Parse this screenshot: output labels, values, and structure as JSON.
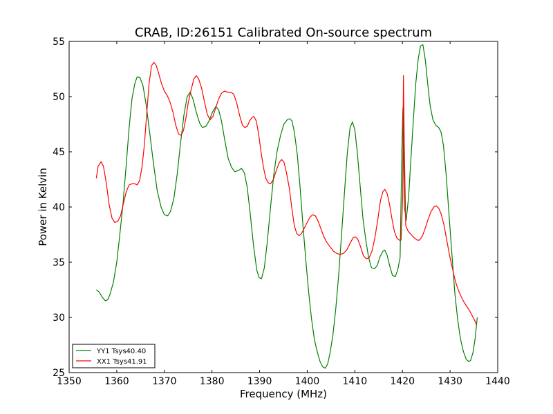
{
  "chart_data": {
    "type": "line",
    "title": "CRAB, ID:26151 Calibrated On-source spectrum",
    "xlabel": "Frequency (MHz)",
    "ylabel": "Power in Kelvin",
    "xlim": [
      1350,
      1440
    ],
    "ylim": [
      25,
      55
    ],
    "xticks": [
      "1350",
      "1360",
      "1370",
      "1380",
      "1390",
      "1400",
      "1410",
      "1420",
      "1430",
      "1440"
    ],
    "yticks": [
      "25",
      "30",
      "35",
      "40",
      "45",
      "50",
      "55"
    ],
    "grid": false,
    "legend_position": "lower-left",
    "series": [
      {
        "name": "YY1 Tsys40.40",
        "color": "#008000",
        "points": [
          [
            1355.7,
            32.5
          ],
          [
            1356.3,
            32.3
          ],
          [
            1357.0,
            31.8
          ],
          [
            1357.6,
            31.5
          ],
          [
            1358.1,
            31.6
          ],
          [
            1358.6,
            32.1
          ],
          [
            1359.3,
            33.2
          ],
          [
            1360.0,
            35.0
          ],
          [
            1360.6,
            37.3
          ],
          [
            1361.3,
            40.2
          ],
          [
            1362.0,
            43.9
          ],
          [
            1362.6,
            47.2
          ],
          [
            1363.2,
            49.8
          ],
          [
            1363.8,
            51.2
          ],
          [
            1364.3,
            51.8
          ],
          [
            1364.9,
            51.7
          ],
          [
            1365.5,
            51.0
          ],
          [
            1366.2,
            49.2
          ],
          [
            1366.9,
            46.8
          ],
          [
            1367.7,
            44.0
          ],
          [
            1368.5,
            41.5
          ],
          [
            1369.3,
            40.0
          ],
          [
            1370.0,
            39.3
          ],
          [
            1370.7,
            39.2
          ],
          [
            1371.3,
            39.6
          ],
          [
            1372.0,
            40.8
          ],
          [
            1372.7,
            43.0
          ],
          [
            1373.4,
            45.8
          ],
          [
            1374.1,
            48.3
          ],
          [
            1374.8,
            50.0
          ],
          [
            1375.4,
            50.4
          ],
          [
            1376.0,
            49.8
          ],
          [
            1376.7,
            48.6
          ],
          [
            1377.4,
            47.6
          ],
          [
            1378.0,
            47.2
          ],
          [
            1378.7,
            47.3
          ],
          [
            1379.4,
            47.8
          ],
          [
            1380.1,
            48.6
          ],
          [
            1380.8,
            49.1
          ],
          [
            1381.4,
            48.8
          ],
          [
            1382.0,
            47.8
          ],
          [
            1382.7,
            46.0
          ],
          [
            1383.4,
            44.4
          ],
          [
            1384.1,
            43.6
          ],
          [
            1384.8,
            43.2
          ],
          [
            1385.5,
            43.3
          ],
          [
            1386.2,
            43.5
          ],
          [
            1386.8,
            43.1
          ],
          [
            1387.4,
            41.8
          ],
          [
            1388.0,
            39.5
          ],
          [
            1388.7,
            36.6
          ],
          [
            1389.4,
            34.3
          ],
          [
            1389.9,
            33.6
          ],
          [
            1390.4,
            33.5
          ],
          [
            1391.0,
            34.5
          ],
          [
            1391.6,
            36.8
          ],
          [
            1392.3,
            40.0
          ],
          [
            1393.0,
            43.0
          ],
          [
            1393.7,
            45.1
          ],
          [
            1394.4,
            46.5
          ],
          [
            1395.1,
            47.5
          ],
          [
            1395.8,
            47.9
          ],
          [
            1396.3,
            48.0
          ],
          [
            1396.8,
            47.8
          ],
          [
            1397.3,
            46.8
          ],
          [
            1397.9,
            44.8
          ],
          [
            1398.5,
            41.8
          ],
          [
            1399.1,
            38.4
          ],
          [
            1399.7,
            35.2
          ],
          [
            1400.3,
            32.3
          ],
          [
            1400.9,
            29.9
          ],
          [
            1401.5,
            28.0
          ],
          [
            1402.1,
            26.9
          ],
          [
            1402.7,
            26.0
          ],
          [
            1403.3,
            25.5
          ],
          [
            1403.8,
            25.4
          ],
          [
            1404.3,
            25.8
          ],
          [
            1404.8,
            26.8
          ],
          [
            1405.4,
            28.4
          ],
          [
            1406.0,
            30.8
          ],
          [
            1406.6,
            33.8
          ],
          [
            1407.2,
            37.4
          ],
          [
            1407.8,
            41.2
          ],
          [
            1408.4,
            44.8
          ],
          [
            1409.0,
            47.2
          ],
          [
            1409.5,
            47.7
          ],
          [
            1410.0,
            47.0
          ],
          [
            1410.5,
            45.0
          ],
          [
            1411.1,
            42.0
          ],
          [
            1411.7,
            39.0
          ],
          [
            1412.3,
            37.0
          ],
          [
            1412.9,
            35.4
          ],
          [
            1413.5,
            34.5
          ],
          [
            1414.1,
            34.4
          ],
          [
            1414.7,
            34.7
          ],
          [
            1415.3,
            35.5
          ],
          [
            1415.9,
            36.0
          ],
          [
            1416.3,
            36.1
          ],
          [
            1416.8,
            35.6
          ],
          [
            1417.3,
            34.7
          ],
          [
            1417.9,
            33.8
          ],
          [
            1418.5,
            33.7
          ],
          [
            1419.0,
            34.3
          ],
          [
            1419.5,
            35.4
          ],
          [
            1419.9,
            45.5
          ],
          [
            1420.1,
            49.0
          ],
          [
            1420.4,
            40.0
          ],
          [
            1420.8,
            38.8
          ],
          [
            1421.3,
            41.0
          ],
          [
            1421.8,
            44.5
          ],
          [
            1422.3,
            48.0
          ],
          [
            1422.8,
            51.2
          ],
          [
            1423.3,
            53.4
          ],
          [
            1423.8,
            54.6
          ],
          [
            1424.3,
            54.7
          ],
          [
            1424.8,
            53.3
          ],
          [
            1425.3,
            51.2
          ],
          [
            1425.8,
            49.2
          ],
          [
            1426.4,
            47.9
          ],
          [
            1427.0,
            47.4
          ],
          [
            1427.6,
            47.2
          ],
          [
            1428.1,
            46.8
          ],
          [
            1428.6,
            45.6
          ],
          [
            1429.2,
            42.8
          ],
          [
            1429.8,
            39.2
          ],
          [
            1430.4,
            35.6
          ],
          [
            1431.0,
            32.2
          ],
          [
            1431.6,
            29.8
          ],
          [
            1432.2,
            28.0
          ],
          [
            1432.8,
            26.9
          ],
          [
            1433.4,
            26.2
          ],
          [
            1433.9,
            26.0
          ],
          [
            1434.3,
            26.1
          ],
          [
            1434.8,
            26.8
          ],
          [
            1435.3,
            28.2
          ],
          [
            1435.7,
            30.0
          ]
        ]
      },
      {
        "name": "XX1 Tsys41.91",
        "color": "#ff0000",
        "points": [
          [
            1355.7,
            42.6
          ],
          [
            1356.1,
            43.7
          ],
          [
            1356.7,
            44.1
          ],
          [
            1357.2,
            43.7
          ],
          [
            1357.8,
            42.2
          ],
          [
            1358.4,
            40.2
          ],
          [
            1359.0,
            39.0
          ],
          [
            1359.6,
            38.6
          ],
          [
            1360.2,
            38.7
          ],
          [
            1360.8,
            39.2
          ],
          [
            1361.4,
            40.3
          ],
          [
            1362.0,
            41.4
          ],
          [
            1362.6,
            42.0
          ],
          [
            1363.2,
            42.1
          ],
          [
            1363.8,
            42.1
          ],
          [
            1364.3,
            42.0
          ],
          [
            1364.8,
            42.4
          ],
          [
            1365.3,
            43.6
          ],
          [
            1365.8,
            45.6
          ],
          [
            1366.3,
            48.5
          ],
          [
            1366.8,
            51.2
          ],
          [
            1367.3,
            52.8
          ],
          [
            1367.8,
            53.1
          ],
          [
            1368.3,
            52.8
          ],
          [
            1368.8,
            52.1
          ],
          [
            1369.4,
            51.2
          ],
          [
            1370.0,
            50.5
          ],
          [
            1370.6,
            50.1
          ],
          [
            1371.2,
            49.5
          ],
          [
            1371.8,
            48.6
          ],
          [
            1372.4,
            47.4
          ],
          [
            1373.0,
            46.6
          ],
          [
            1373.5,
            46.5
          ],
          [
            1374.0,
            46.9
          ],
          [
            1374.5,
            48.0
          ],
          [
            1375.0,
            49.4
          ],
          [
            1375.6,
            50.6
          ],
          [
            1376.2,
            51.6
          ],
          [
            1376.7,
            51.9
          ],
          [
            1377.2,
            51.6
          ],
          [
            1377.8,
            50.8
          ],
          [
            1378.4,
            49.6
          ],
          [
            1379.0,
            48.4
          ],
          [
            1379.6,
            47.9
          ],
          [
            1380.2,
            48.2
          ],
          [
            1380.8,
            49.0
          ],
          [
            1381.4,
            49.8
          ],
          [
            1382.0,
            50.3
          ],
          [
            1382.6,
            50.5
          ],
          [
            1383.3,
            50.4
          ],
          [
            1384.0,
            50.4
          ],
          [
            1384.6,
            50.2
          ],
          [
            1385.2,
            49.4
          ],
          [
            1385.8,
            48.3
          ],
          [
            1386.4,
            47.4
          ],
          [
            1386.9,
            47.2
          ],
          [
            1387.4,
            47.3
          ],
          [
            1387.9,
            47.8
          ],
          [
            1388.4,
            48.1
          ],
          [
            1388.8,
            48.2
          ],
          [
            1389.3,
            47.8
          ],
          [
            1389.8,
            46.6
          ],
          [
            1390.3,
            45.0
          ],
          [
            1390.8,
            43.6
          ],
          [
            1391.3,
            42.6
          ],
          [
            1391.8,
            42.2
          ],
          [
            1392.3,
            42.1
          ],
          [
            1392.9,
            42.5
          ],
          [
            1393.5,
            43.3
          ],
          [
            1394.1,
            44.0
          ],
          [
            1394.6,
            44.3
          ],
          [
            1395.1,
            44.1
          ],
          [
            1395.6,
            43.2
          ],
          [
            1396.2,
            41.8
          ],
          [
            1396.8,
            39.8
          ],
          [
            1397.3,
            38.3
          ],
          [
            1397.8,
            37.6
          ],
          [
            1398.3,
            37.4
          ],
          [
            1398.8,
            37.6
          ],
          [
            1399.4,
            38.1
          ],
          [
            1400.0,
            38.6
          ],
          [
            1400.6,
            39.1
          ],
          [
            1401.2,
            39.3
          ],
          [
            1401.7,
            39.2
          ],
          [
            1402.3,
            38.7
          ],
          [
            1402.9,
            38.0
          ],
          [
            1403.5,
            37.3
          ],
          [
            1404.1,
            36.8
          ],
          [
            1404.8,
            36.4
          ],
          [
            1405.5,
            36.0
          ],
          [
            1406.2,
            35.8
          ],
          [
            1406.9,
            35.7
          ],
          [
            1407.6,
            35.8
          ],
          [
            1408.3,
            36.1
          ],
          [
            1409.0,
            36.7
          ],
          [
            1409.6,
            37.2
          ],
          [
            1410.1,
            37.3
          ],
          [
            1410.6,
            37.1
          ],
          [
            1411.2,
            36.4
          ],
          [
            1411.8,
            35.6
          ],
          [
            1412.4,
            35.3
          ],
          [
            1413.0,
            35.4
          ],
          [
            1413.6,
            36.0
          ],
          [
            1414.2,
            37.2
          ],
          [
            1414.8,
            38.8
          ],
          [
            1415.4,
            40.6
          ],
          [
            1415.9,
            41.4
          ],
          [
            1416.3,
            41.6
          ],
          [
            1416.8,
            41.2
          ],
          [
            1417.3,
            40.2
          ],
          [
            1417.8,
            38.9
          ],
          [
            1418.3,
            37.8
          ],
          [
            1418.8,
            37.2
          ],
          [
            1419.3,
            37.0
          ],
          [
            1419.7,
            37.0
          ],
          [
            1420.05,
            41.0
          ],
          [
            1420.2,
            51.9
          ],
          [
            1420.4,
            45.0
          ],
          [
            1420.7,
            38.3
          ],
          [
            1421.2,
            37.8
          ],
          [
            1421.8,
            37.5
          ],
          [
            1422.5,
            37.2
          ],
          [
            1423.1,
            37.0
          ],
          [
            1423.6,
            37.0
          ],
          [
            1424.2,
            37.4
          ],
          [
            1424.8,
            38.1
          ],
          [
            1425.4,
            38.9
          ],
          [
            1426.0,
            39.6
          ],
          [
            1426.6,
            40.0
          ],
          [
            1427.1,
            40.1
          ],
          [
            1427.6,
            39.9
          ],
          [
            1428.1,
            39.4
          ],
          [
            1428.7,
            38.4
          ],
          [
            1429.3,
            37.0
          ],
          [
            1429.9,
            35.6
          ],
          [
            1430.5,
            34.4
          ],
          [
            1431.1,
            33.3
          ],
          [
            1431.7,
            32.5
          ],
          [
            1432.3,
            31.9
          ],
          [
            1432.9,
            31.4
          ],
          [
            1433.5,
            31.0
          ],
          [
            1434.1,
            30.6
          ],
          [
            1434.7,
            30.1
          ],
          [
            1435.2,
            29.7
          ],
          [
            1435.6,
            29.3
          ]
        ]
      }
    ]
  }
}
